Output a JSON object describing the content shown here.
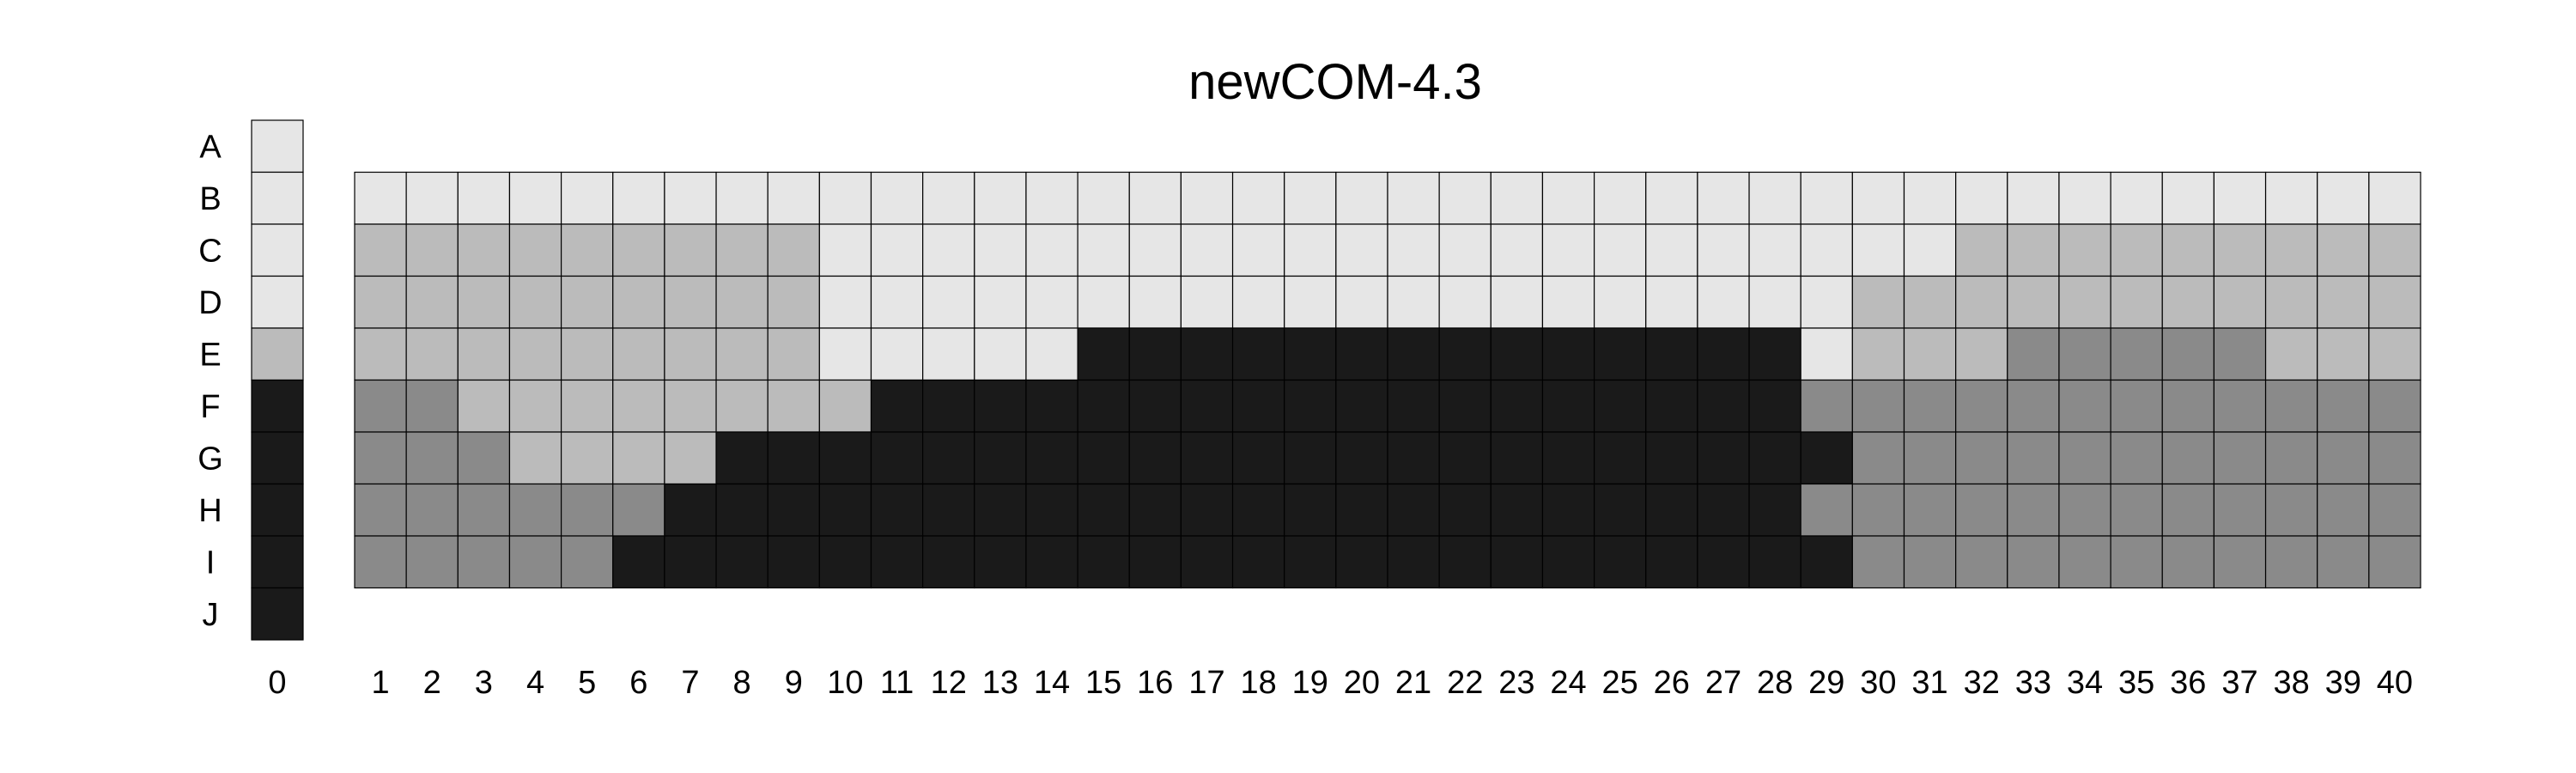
{
  "chart_data": {
    "type": "heatmap",
    "title": "newCOM-4.3",
    "rows": [
      "A",
      "B",
      "C",
      "D",
      "E",
      "F",
      "G",
      "H",
      "I",
      "J"
    ],
    "columns": [
      "0",
      "1",
      "2",
      "3",
      "4",
      "5",
      "6",
      "7",
      "8",
      "9",
      "10",
      "11",
      "12",
      "13",
      "14",
      "15",
      "16",
      "17",
      "18",
      "19",
      "20",
      "21",
      "22",
      "23",
      "24",
      "25",
      "26",
      "27",
      "28",
      "29",
      "30",
      "31",
      "32",
      "33",
      "34",
      "35",
      "36",
      "37",
      "38",
      "39",
      "40"
    ],
    "levels": {
      "0": "#e6e6e6",
      "1": "#bbbbbb",
      "2": "#8a8a8a",
      "3": "#1a1a1a"
    },
    "values": [
      [
        0,
        null,
        null,
        null,
        null,
        null,
        null,
        null,
        null,
        null,
        null,
        null,
        null,
        null,
        null,
        null,
        null,
        null,
        null,
        null,
        null,
        null,
        null,
        null,
        null,
        null,
        null,
        null,
        null,
        null,
        null,
        null,
        null,
        null,
        null,
        null,
        null,
        null,
        null,
        null,
        null
      ],
      [
        0,
        0,
        0,
        0,
        0,
        0,
        0,
        0,
        0,
        0,
        0,
        0,
        0,
        0,
        0,
        0,
        0,
        0,
        0,
        0,
        0,
        0,
        0,
        0,
        0,
        0,
        0,
        0,
        0,
        0,
        0,
        0,
        0,
        0,
        0,
        0,
        0,
        0,
        0,
        0,
        0
      ],
      [
        0,
        1,
        1,
        1,
        1,
        1,
        1,
        1,
        1,
        1,
        0,
        0,
        0,
        0,
        0,
        0,
        0,
        0,
        0,
        0,
        0,
        0,
        0,
        0,
        0,
        0,
        0,
        0,
        0,
        0,
        0,
        0,
        1,
        1,
        1,
        1,
        1,
        1,
        1,
        1,
        1
      ],
      [
        0,
        1,
        1,
        1,
        1,
        1,
        1,
        1,
        1,
        1,
        0,
        0,
        0,
        0,
        0,
        0,
        0,
        0,
        0,
        0,
        0,
        0,
        0,
        0,
        0,
        0,
        0,
        0,
        0,
        0,
        1,
        1,
        1,
        1,
        1,
        1,
        1,
        1,
        1,
        1,
        1
      ],
      [
        1,
        1,
        1,
        1,
        1,
        1,
        1,
        1,
        1,
        1,
        0,
        0,
        0,
        0,
        0,
        3,
        3,
        3,
        3,
        3,
        3,
        3,
        3,
        3,
        3,
        3,
        3,
        3,
        3,
        0,
        1,
        1,
        1,
        2,
        2,
        2,
        2,
        2,
        1,
        1,
        1
      ],
      [
        3,
        2,
        2,
        1,
        1,
        1,
        1,
        1,
        1,
        1,
        1,
        3,
        3,
        3,
        3,
        3,
        3,
        3,
        3,
        3,
        3,
        3,
        3,
        3,
        3,
        3,
        3,
        3,
        3,
        2,
        2,
        2,
        2,
        2,
        2,
        2,
        2,
        2,
        2,
        2,
        2
      ],
      [
        3,
        2,
        2,
        2,
        1,
        1,
        1,
        1,
        3,
        3,
        3,
        3,
        3,
        3,
        3,
        3,
        3,
        3,
        3,
        3,
        3,
        3,
        3,
        3,
        3,
        3,
        3,
        3,
        3,
        3,
        2,
        2,
        2,
        2,
        2,
        2,
        2,
        2,
        2,
        2,
        2
      ],
      [
        3,
        2,
        2,
        2,
        2,
        2,
        2,
        3,
        3,
        3,
        3,
        3,
        3,
        3,
        3,
        3,
        3,
        3,
        3,
        3,
        3,
        3,
        3,
        3,
        3,
        3,
        3,
        3,
        3,
        2,
        2,
        2,
        2,
        2,
        2,
        2,
        2,
        2,
        2,
        2,
        2
      ],
      [
        3,
        2,
        2,
        2,
        2,
        2,
        3,
        3,
        3,
        3,
        3,
        3,
        3,
        3,
        3,
        3,
        3,
        3,
        3,
        3,
        3,
        3,
        3,
        3,
        3,
        3,
        3,
        3,
        3,
        3,
        2,
        2,
        2,
        2,
        2,
        2,
        2,
        2,
        2,
        2,
        2
      ],
      [
        3,
        null,
        null,
        null,
        null,
        null,
        null,
        null,
        null,
        null,
        null,
        null,
        null,
        null,
        null,
        null,
        null,
        null,
        null,
        null,
        null,
        null,
        null,
        null,
        null,
        null,
        null,
        null,
        null,
        null,
        null,
        null,
        null,
        null,
        null,
        null,
        null,
        null,
        null,
        null,
        null
      ]
    ],
    "xlabel": "",
    "ylabel": ""
  }
}
